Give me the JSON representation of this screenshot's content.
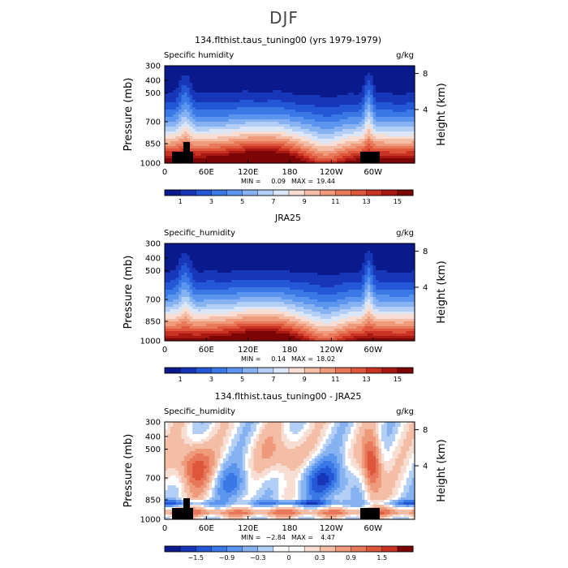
{
  "page": {
    "title": "DJF"
  },
  "chart_data": [
    {
      "type": "heatmap",
      "title": "134.flthist.taus_tuning00 (yrs 1979-1979)",
      "left_label": "Specific humidity",
      "units": "g/kg",
      "ylabel": "Pressure (mb)",
      "y2label": "Height (km)",
      "yticks": [
        "300",
        "400",
        "500",
        "700",
        "850",
        "1000"
      ],
      "y2ticks": [
        "8",
        "4"
      ],
      "xticks": [
        "0",
        "60E",
        "120E",
        "180",
        "120W",
        "60W"
      ],
      "stats": {
        "min_label": "MIN =",
        "min": "0.09",
        "max_label": "MAX =",
        "max": "19.44"
      },
      "colorbar_labels": [
        "1",
        "3",
        "5",
        "7",
        "9",
        "11",
        "13",
        "15"
      ],
      "kind": "abs",
      "colors": [
        "#0a1a8c",
        "#1736b8",
        "#2457d6",
        "#3a78e6",
        "#5b95ee",
        "#86b2f2",
        "#b4cff6",
        "#dbe6f7",
        "#f7ddd2",
        "#f4bda6",
        "#ef9a7a",
        "#e8785a",
        "#de563c",
        "#c83324",
        "#a81812",
        "#7c0606"
      ]
    },
    {
      "type": "heatmap",
      "title": "JRA25",
      "left_label": "Specific_humidity",
      "units": "g/kg",
      "ylabel": "Pressure (mb)",
      "y2label": "Height (km)",
      "yticks": [
        "300",
        "400",
        "500",
        "700",
        "850",
        "1000"
      ],
      "y2ticks": [
        "8",
        "4"
      ],
      "xticks": [
        "0",
        "60E",
        "120E",
        "180",
        "120W",
        "60W"
      ],
      "stats": {
        "min_label": "MIN =",
        "min": "0.14",
        "max_label": "MAX =",
        "max": "18.02"
      },
      "colorbar_labels": [
        "1",
        "3",
        "5",
        "7",
        "9",
        "11",
        "13",
        "15"
      ],
      "kind": "abs",
      "colors": [
        "#0a1a8c",
        "#1736b8",
        "#2457d6",
        "#3a78e6",
        "#5b95ee",
        "#86b2f2",
        "#b4cff6",
        "#dbe6f7",
        "#f7ddd2",
        "#f4bda6",
        "#ef9a7a",
        "#e8785a",
        "#de563c",
        "#c83324",
        "#a81812",
        "#7c0606"
      ]
    },
    {
      "type": "heatmap",
      "title": "134.flthist.taus_tuning00 - JRA25",
      "left_label": "Specific_humidity",
      "units": "g/kg",
      "ylabel": "Pressure (mb)",
      "y2label": "Height (km)",
      "yticks": [
        "300",
        "400",
        "500",
        "700",
        "850",
        "1000"
      ],
      "y2ticks": [
        "8",
        "4"
      ],
      "xticks": [
        "0",
        "60E",
        "120E",
        "180",
        "120W",
        "60W"
      ],
      "stats": {
        "min_label": "MIN =",
        "min": "−2.84",
        "max_label": "MAX =",
        "max": "4.47"
      },
      "colorbar_labels": [
        "−1.5",
        "−0.9",
        "−0.3",
        "0",
        "0.3",
        "0.9",
        "1.5"
      ],
      "kind": "diff",
      "colors": [
        "#0a1a8c",
        "#1736b8",
        "#2457d6",
        "#3a78e6",
        "#5b95ee",
        "#86b2f2",
        "#b4cff6",
        "#ffffff",
        "#ffffff",
        "#f7ddd2",
        "#f4bda6",
        "#ef9a7a",
        "#e8785a",
        "#de563c",
        "#c83324",
        "#7c0606"
      ]
    }
  ]
}
